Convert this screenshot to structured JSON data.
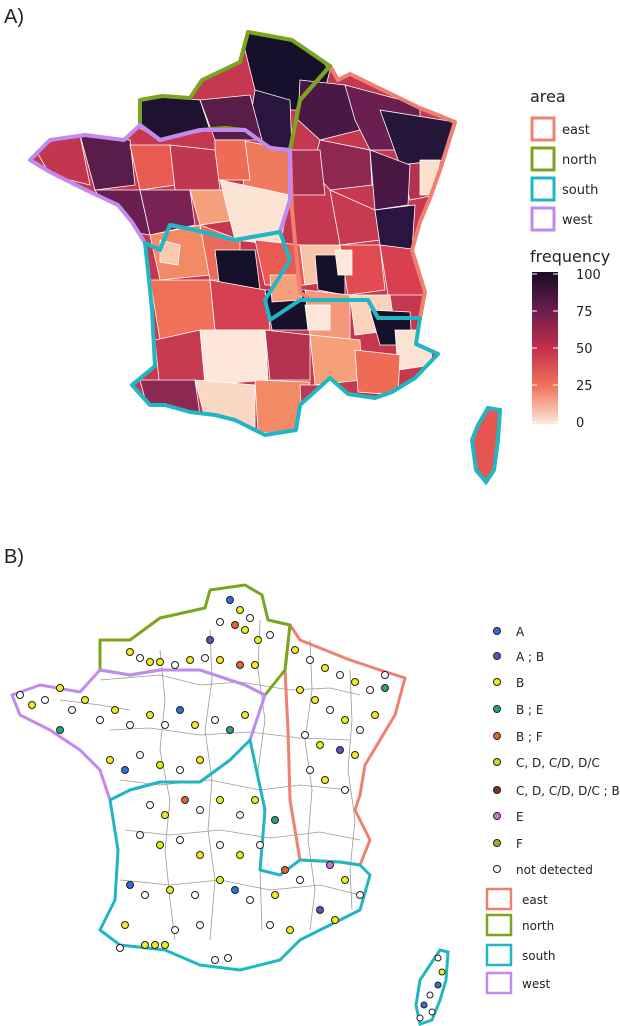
{
  "panel_a": {
    "label": "A)",
    "area_legend": {
      "title": "area",
      "items": [
        {
          "name": "east",
          "color": "#f08070"
        },
        {
          "name": "north",
          "color": "#7aa51e"
        },
        {
          "name": "south",
          "color": "#20b6c4"
        },
        {
          "name": "west",
          "color": "#c08af0"
        }
      ]
    },
    "frequency_legend": {
      "title": "frequency",
      "ticks": [
        "100",
        "75",
        "50",
        "25",
        "0"
      ],
      "color_high": "#1a1030",
      "color_mid": "#e8424a",
      "color_low": "#fbe6d8"
    }
  },
  "panel_b": {
    "label": "B)",
    "point_legend": [
      {
        "label": "A",
        "color": "#2f6fd6"
      },
      {
        "label": "A ; B",
        "color": "#5b4fb8"
      },
      {
        "label": "B",
        "color": "#f2ee1a"
      },
      {
        "label": "B ; E",
        "color": "#25a67a"
      },
      {
        "label": "B ; F",
        "color": "#e8642a"
      },
      {
        "label": "C, D, C/D, D/C",
        "color": "#b9e02a"
      },
      {
        "label": "C, D, C/D, D/C ; B",
        "color": "#7a3418"
      },
      {
        "label": "E",
        "color": "#d070d8"
      },
      {
        "label": "F",
        "color": "#b2a62a"
      },
      {
        "label": "not detected",
        "color": "#ffffff"
      }
    ],
    "area_legend": [
      {
        "name": "east",
        "color": "#f08070"
      },
      {
        "name": "north",
        "color": "#7aa51e"
      },
      {
        "name": "south",
        "color": "#20b6c4"
      },
      {
        "name": "west",
        "color": "#c08af0"
      }
    ]
  }
}
